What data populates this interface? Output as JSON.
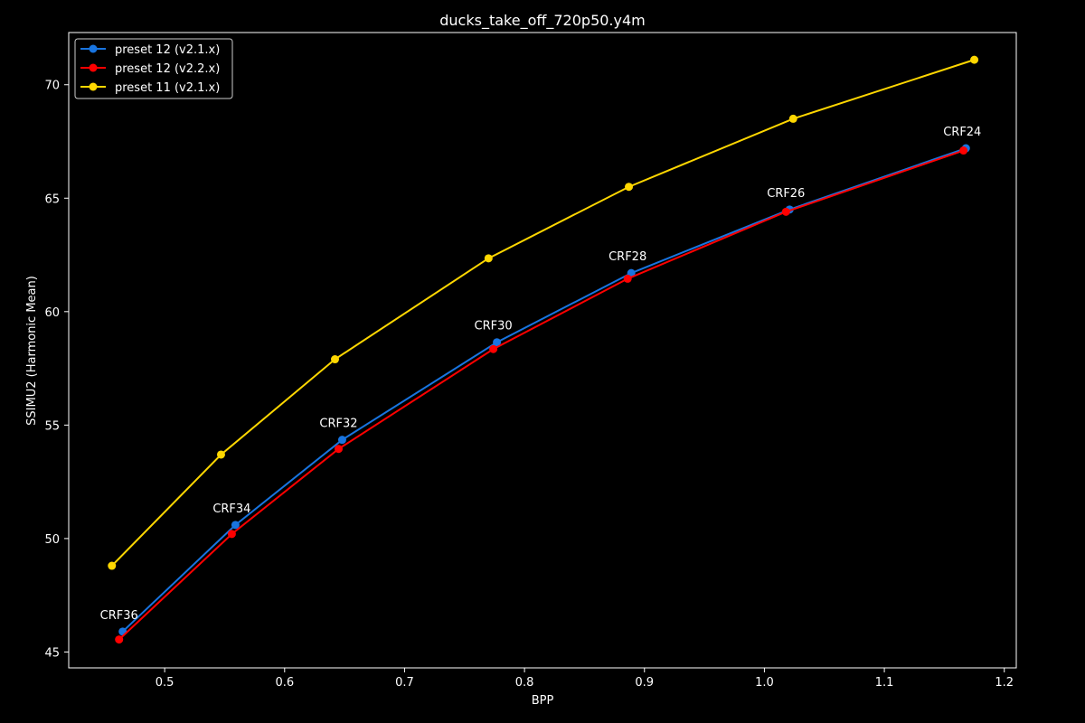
{
  "chart_data": {
    "type": "line",
    "title": "ducks_take_off_720p50.y4m",
    "xlabel": "BPP",
    "ylabel": "SSIMU2 (Harmonic Mean)",
    "xlim": [
      0.42,
      1.21
    ],
    "ylim": [
      44.3,
      72.3
    ],
    "xticks": [
      0.5,
      0.6,
      0.7,
      0.8,
      0.9,
      1.0,
      1.1,
      1.2
    ],
    "xtick_labels": [
      "0.5",
      "0.6",
      "0.7",
      "0.8",
      "0.9",
      "1.0",
      "1.1",
      "1.2"
    ],
    "yticks": [
      45,
      50,
      55,
      60,
      65,
      70
    ],
    "ytick_labels": [
      "45",
      "50",
      "55",
      "60",
      "65",
      "70"
    ],
    "grid": false,
    "legend_position": "top-left",
    "series": [
      {
        "name": "preset 12 (v2.1.x)",
        "color": "#1874e0",
        "x": [
          0.465,
          0.559,
          0.648,
          0.777,
          0.889,
          1.021,
          1.168
        ],
        "y": [
          45.9,
          50.6,
          54.35,
          58.65,
          61.7,
          64.5,
          67.2
        ]
      },
      {
        "name": "preset 12 (v2.2.x)",
        "color": "#ff0000",
        "x": [
          0.462,
          0.556,
          0.645,
          0.774,
          0.886,
          1.018,
          1.166
        ],
        "y": [
          45.55,
          50.2,
          53.95,
          58.35,
          61.45,
          64.4,
          67.1
        ]
      },
      {
        "name": "preset 11 (v2.1.x)",
        "color": "#ffd700",
        "x": [
          0.456,
          0.547,
          0.642,
          0.77,
          0.887,
          1.024,
          1.175
        ],
        "y": [
          48.8,
          53.7,
          57.9,
          62.35,
          65.5,
          68.5,
          71.1
        ]
      }
    ],
    "annotations": [
      {
        "text": "CRF36",
        "x": 0.465,
        "y": 45.9
      },
      {
        "text": "CRF34",
        "x": 0.559,
        "y": 50.6
      },
      {
        "text": "CRF32",
        "x": 0.648,
        "y": 54.35
      },
      {
        "text": "CRF30",
        "x": 0.777,
        "y": 58.65
      },
      {
        "text": "CRF28",
        "x": 0.889,
        "y": 61.7
      },
      {
        "text": "CRF26",
        "x": 1.021,
        "y": 64.5
      },
      {
        "text": "CRF24",
        "x": 1.168,
        "y": 67.2
      }
    ]
  }
}
